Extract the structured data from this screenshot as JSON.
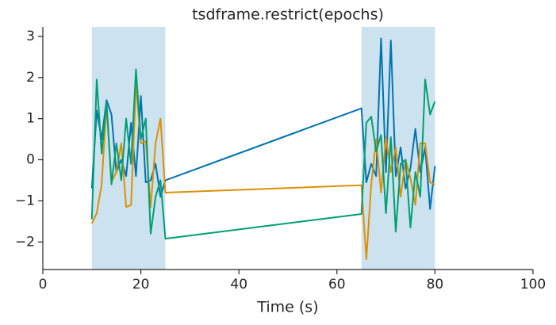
{
  "chart_data": {
    "type": "line",
    "title": "tsdframe.restrict(epochs)",
    "xlabel": "Time (s)",
    "x": [
      10,
      11,
      12,
      13,
      14,
      15,
      16,
      17,
      18,
      19,
      20,
      21,
      22,
      23,
      24,
      25,
      65,
      66,
      67,
      68,
      69,
      70,
      71,
      72,
      73,
      74,
      75,
      76,
      77,
      78,
      79,
      80
    ],
    "series": [
      {
        "color": "#0173b2",
        "values": [
          -0.7,
          1.2,
          0.5,
          1.45,
          1.1,
          -0.3,
          0.0,
          -0.4,
          0.9,
          -0.4,
          1.55,
          -0.55,
          -0.5,
          -0.1,
          -0.9,
          -0.5,
          1.25,
          -0.55,
          -0.1,
          -0.4,
          2.95,
          -0.3,
          2.9,
          -0.4,
          0.3,
          -0.7,
          -0.2,
          0.75,
          -0.3,
          0.3,
          -1.2,
          -0.15
        ]
      },
      {
        "color": "#de8f05",
        "values": [
          -1.55,
          -1.3,
          -0.6,
          1.35,
          -0.55,
          -0.3,
          0.4,
          -1.15,
          -1.1,
          1.85,
          0.4,
          0.45,
          -1.15,
          0.4,
          1.0,
          -0.8,
          -0.62,
          -2.42,
          -0.6,
          0.5,
          -0.8,
          0.55,
          -0.3,
          0.3,
          -0.9,
          0.0,
          -0.45,
          -1.1,
          0.4,
          0.4,
          -0.55,
          -0.6
        ]
      },
      {
        "color": "#029e73",
        "values": [
          -1.45,
          1.95,
          0.15,
          1.4,
          -0.6,
          0.4,
          -0.5,
          1.0,
          -0.1,
          2.2,
          0.5,
          1.0,
          -1.8,
          -0.9,
          -0.5,
          -1.92,
          -1.32,
          0.9,
          1.05,
          0.2,
          0.6,
          -1.3,
          0.55,
          -1.75,
          -0.1,
          0.0,
          -1.65,
          -0.3,
          -0.9,
          1.95,
          1.1,
          1.42
        ]
      }
    ],
    "spans": [
      [
        10,
        25
      ],
      [
        65,
        80
      ]
    ],
    "span_color": "#cce3ef",
    "xlim": [
      0,
      100
    ],
    "xticks": [
      0,
      20,
      40,
      60,
      80,
      100
    ],
    "ylim": [
      -2.67,
      3.23
    ],
    "yticks": [
      {
        "value": -2,
        "label": "−2"
      },
      {
        "value": -1,
        "label": "−1"
      },
      0,
      1,
      2,
      3
    ],
    "grid": false
  }
}
